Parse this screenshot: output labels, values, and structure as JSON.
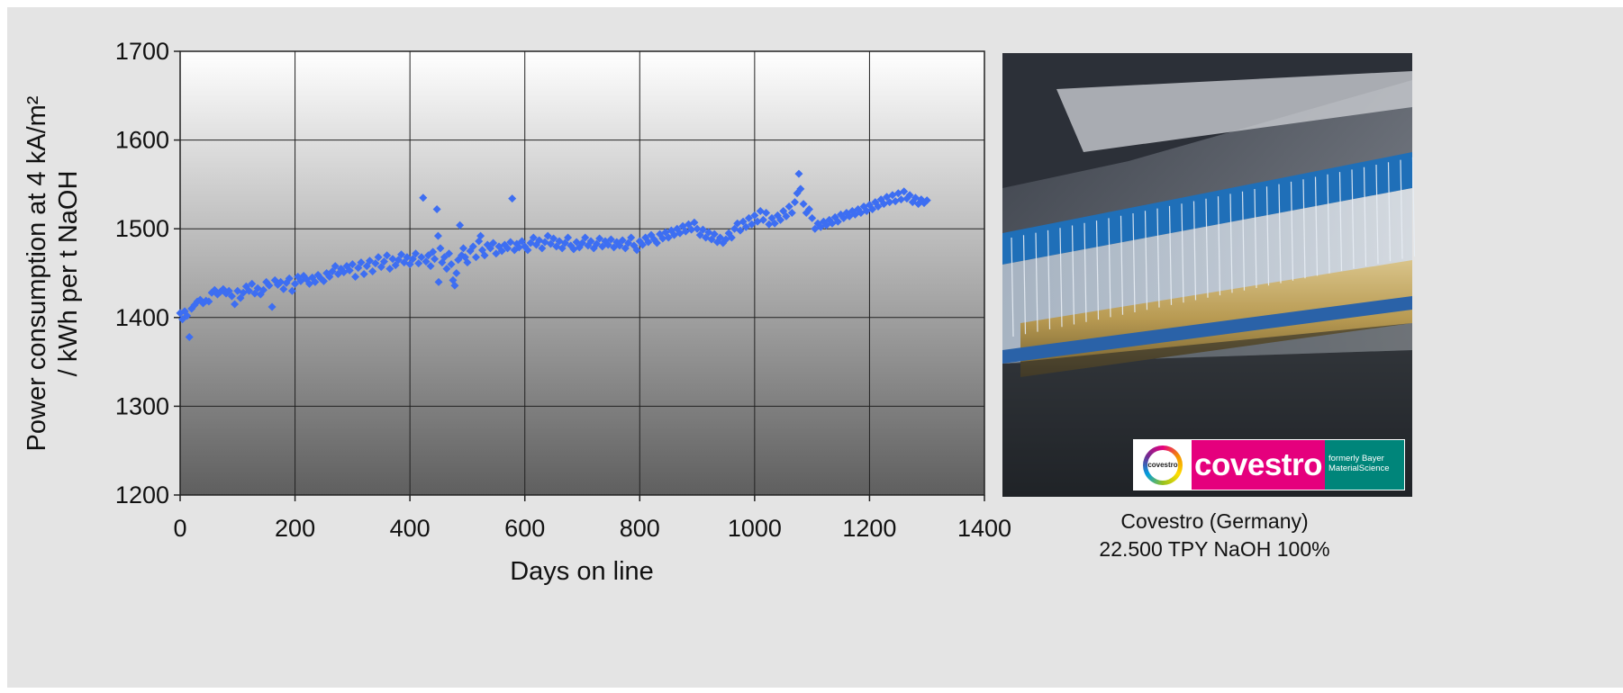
{
  "chart_data": {
    "type": "scatter",
    "title": "",
    "xlabel": "Days on line",
    "ylabel_lines": [
      "Power consumption at 4 kA/m²",
      "/ kWh per t NaOH"
    ],
    "xlim": [
      0,
      1400
    ],
    "ylim": [
      1200,
      1700
    ],
    "x_ticks": [
      0,
      200,
      400,
      600,
      800,
      1000,
      1200,
      1400
    ],
    "y_ticks": [
      1200,
      1300,
      1400,
      1500,
      1600,
      1700
    ],
    "grid": true,
    "marker_color": "#3d6ef2",
    "background_gradient": [
      "#ffffff",
      "#5f5f5f"
    ],
    "series": [
      {
        "marker": "diamond",
        "points": [
          [
            0,
            1405
          ],
          [
            4,
            1398
          ],
          [
            8,
            1407
          ],
          [
            12,
            1402
          ],
          [
            16,
            1378
          ],
          [
            20,
            1410
          ],
          [
            25,
            1414
          ],
          [
            30,
            1418
          ],
          [
            35,
            1420
          ],
          [
            40,
            1416
          ],
          [
            45,
            1419
          ],
          [
            50,
            1418
          ],
          [
            55,
            1428
          ],
          [
            60,
            1431
          ],
          [
            65,
            1426
          ],
          [
            70,
            1429
          ],
          [
            75,
            1432
          ],
          [
            80,
            1427
          ],
          [
            85,
            1430
          ],
          [
            90,
            1424
          ],
          [
            95,
            1415
          ],
          [
            100,
            1430
          ],
          [
            105,
            1422
          ],
          [
            110,
            1428
          ],
          [
            115,
            1435
          ],
          [
            120,
            1430
          ],
          [
            125,
            1438
          ],
          [
            130,
            1427
          ],
          [
            135,
            1433
          ],
          [
            140,
            1426
          ],
          [
            145,
            1431
          ],
          [
            150,
            1440
          ],
          [
            155,
            1436
          ],
          [
            160,
            1412
          ],
          [
            165,
            1442
          ],
          [
            170,
            1437
          ],
          [
            175,
            1440
          ],
          [
            180,
            1432
          ],
          [
            185,
            1439
          ],
          [
            190,
            1444
          ],
          [
            195,
            1430
          ],
          [
            200,
            1438
          ],
          [
            205,
            1446
          ],
          [
            210,
            1441
          ],
          [
            215,
            1447
          ],
          [
            220,
            1443
          ],
          [
            225,
            1438
          ],
          [
            230,
            1445
          ],
          [
            235,
            1440
          ],
          [
            240,
            1448
          ],
          [
            245,
            1444
          ],
          [
            250,
            1441
          ],
          [
            255,
            1450
          ],
          [
            260,
            1446
          ],
          [
            265,
            1452
          ],
          [
            270,
            1458
          ],
          [
            275,
            1449
          ],
          [
            280,
            1455
          ],
          [
            285,
            1451
          ],
          [
            290,
            1458
          ],
          [
            295,
            1453
          ],
          [
            300,
            1460
          ],
          [
            305,
            1446
          ],
          [
            310,
            1456
          ],
          [
            315,
            1462
          ],
          [
            320,
            1449
          ],
          [
            325,
            1458
          ],
          [
            330,
            1464
          ],
          [
            335,
            1452
          ],
          [
            340,
            1461
          ],
          [
            345,
            1468
          ],
          [
            350,
            1457
          ],
          [
            355,
            1463
          ],
          [
            360,
            1470
          ],
          [
            365,
            1455
          ],
          [
            370,
            1466
          ],
          [
            375,
            1459
          ],
          [
            380,
            1465
          ],
          [
            385,
            1471
          ],
          [
            390,
            1462
          ],
          [
            395,
            1468
          ],
          [
            400,
            1460
          ],
          [
            405,
            1466
          ],
          [
            410,
            1472
          ],
          [
            415,
            1461
          ],
          [
            420,
            1468
          ],
          [
            423,
            1535
          ],
          [
            428,
            1463
          ],
          [
            432,
            1470
          ],
          [
            436,
            1458
          ],
          [
            440,
            1474
          ],
          [
            443,
            1466
          ],
          [
            447,
            1522
          ],
          [
            449,
            1492
          ],
          [
            450,
            1440
          ],
          [
            453,
            1478
          ],
          [
            456,
            1462
          ],
          [
            460,
            1468
          ],
          [
            464,
            1455
          ],
          [
            468,
            1472
          ],
          [
            472,
            1460
          ],
          [
            475,
            1442
          ],
          [
            478,
            1436
          ],
          [
            481,
            1450
          ],
          [
            484,
            1465
          ],
          [
            487,
            1504
          ],
          [
            490,
            1470
          ],
          [
            493,
            1478
          ],
          [
            496,
            1468
          ],
          [
            500,
            1462
          ],
          [
            505,
            1475
          ],
          [
            510,
            1480
          ],
          [
            515,
            1468
          ],
          [
            520,
            1486
          ],
          [
            523,
            1492
          ],
          [
            526,
            1476
          ],
          [
            530,
            1470
          ],
          [
            535,
            1482
          ],
          [
            540,
            1478
          ],
          [
            545,
            1484
          ],
          [
            550,
            1472
          ],
          [
            555,
            1480
          ],
          [
            560,
            1475
          ],
          [
            565,
            1482
          ],
          [
            570,
            1478
          ],
          [
            575,
            1485
          ],
          [
            578,
            1534
          ],
          [
            582,
            1476
          ],
          [
            586,
            1483
          ],
          [
            590,
            1479
          ],
          [
            595,
            1486
          ],
          [
            600,
            1480
          ],
          [
            605,
            1476
          ],
          [
            610,
            1484
          ],
          [
            615,
            1490
          ],
          [
            620,
            1482
          ],
          [
            625,
            1487
          ],
          [
            630,
            1478
          ],
          [
            635,
            1485
          ],
          [
            640,
            1492
          ],
          [
            645,
            1483
          ],
          [
            650,
            1489
          ],
          [
            655,
            1480
          ],
          [
            660,
            1486
          ],
          [
            665,
            1478
          ],
          [
            670,
            1484
          ],
          [
            675,
            1490
          ],
          [
            680,
            1481
          ],
          [
            685,
            1477
          ],
          [
            690,
            1485
          ],
          [
            695,
            1479
          ],
          [
            700,
            1484
          ],
          [
            705,
            1490
          ],
          [
            710,
            1481
          ],
          [
            715,
            1486
          ],
          [
            720,
            1478
          ],
          [
            725,
            1483
          ],
          [
            730,
            1489
          ],
          [
            735,
            1480
          ],
          [
            740,
            1486
          ],
          [
            745,
            1482
          ],
          [
            750,
            1488
          ],
          [
            755,
            1479
          ],
          [
            760,
            1485
          ],
          [
            765,
            1481
          ],
          [
            770,
            1487
          ],
          [
            775,
            1478
          ],
          [
            780,
            1484
          ],
          [
            785,
            1490
          ],
          [
            790,
            1481
          ],
          [
            795,
            1476
          ],
          [
            800,
            1486
          ],
          [
            805,
            1482
          ],
          [
            810,
            1490
          ],
          [
            815,
            1485
          ],
          [
            820,
            1493
          ],
          [
            825,
            1488
          ],
          [
            830,
            1484
          ],
          [
            835,
            1494
          ],
          [
            840,
            1489
          ],
          [
            845,
            1496
          ],
          [
            850,
            1490
          ],
          [
            855,
            1498
          ],
          [
            860,
            1493
          ],
          [
            865,
            1500
          ],
          [
            870,
            1495
          ],
          [
            875,
            1503
          ],
          [
            880,
            1497
          ],
          [
            885,
            1505
          ],
          [
            890,
            1499
          ],
          [
            895,
            1507
          ],
          [
            900,
            1500
          ],
          [
            905,
            1493
          ],
          [
            910,
            1499
          ],
          [
            915,
            1490
          ],
          [
            920,
            1496
          ],
          [
            925,
            1488
          ],
          [
            930,
            1494
          ],
          [
            935,
            1485
          ],
          [
            940,
            1490
          ],
          [
            945,
            1484
          ],
          [
            950,
            1488
          ],
          [
            955,
            1495
          ],
          [
            960,
            1490
          ],
          [
            965,
            1500
          ],
          [
            970,
            1506
          ],
          [
            975,
            1498
          ],
          [
            980,
            1508
          ],
          [
            985,
            1502
          ],
          [
            990,
            1512
          ],
          [
            995,
            1505
          ],
          [
            1000,
            1515
          ],
          [
            1005,
            1508
          ],
          [
            1010,
            1520
          ],
          [
            1015,
            1510
          ],
          [
            1020,
            1518
          ],
          [
            1025,
            1505
          ],
          [
            1030,
            1512
          ],
          [
            1035,
            1506
          ],
          [
            1040,
            1515
          ],
          [
            1045,
            1510
          ],
          [
            1050,
            1520
          ],
          [
            1055,
            1514
          ],
          [
            1060,
            1525
          ],
          [
            1065,
            1518
          ],
          [
            1070,
            1530
          ],
          [
            1074,
            1540
          ],
          [
            1077,
            1562
          ],
          [
            1080,
            1545
          ],
          [
            1085,
            1528
          ],
          [
            1090,
            1518
          ],
          [
            1095,
            1522
          ],
          [
            1100,
            1512
          ],
          [
            1105,
            1500
          ],
          [
            1110,
            1506
          ],
          [
            1115,
            1502
          ],
          [
            1120,
            1508
          ],
          [
            1125,
            1504
          ],
          [
            1130,
            1510
          ],
          [
            1135,
            1506
          ],
          [
            1140,
            1513
          ],
          [
            1145,
            1508
          ],
          [
            1150,
            1516
          ],
          [
            1155,
            1512
          ],
          [
            1160,
            1518
          ],
          [
            1165,
            1514
          ],
          [
            1170,
            1520
          ],
          [
            1175,
            1516
          ],
          [
            1180,
            1522
          ],
          [
            1185,
            1518
          ],
          [
            1190,
            1525
          ],
          [
            1195,
            1520
          ],
          [
            1200,
            1527
          ],
          [
            1205,
            1522
          ],
          [
            1210,
            1530
          ],
          [
            1215,
            1525
          ],
          [
            1220,
            1533
          ],
          [
            1225,
            1528
          ],
          [
            1230,
            1536
          ],
          [
            1235,
            1530
          ],
          [
            1240,
            1538
          ],
          [
            1245,
            1531
          ],
          [
            1250,
            1540
          ],
          [
            1255,
            1533
          ],
          [
            1260,
            1542
          ],
          [
            1265,
            1534
          ],
          [
            1270,
            1538
          ],
          [
            1275,
            1530
          ],
          [
            1280,
            1535
          ],
          [
            1285,
            1528
          ],
          [
            1290,
            1533
          ],
          [
            1295,
            1529
          ],
          [
            1300,
            1532
          ]
        ]
      }
    ]
  },
  "photo": {
    "logo": {
      "mark_text": "covestro",
      "word": "covestro",
      "former_line1": "formerly Bayer",
      "former_line2": "MaterialScience"
    }
  },
  "caption": {
    "line1": "Covestro (Germany)",
    "line2": "22.500 TPY NaOH 100%"
  }
}
